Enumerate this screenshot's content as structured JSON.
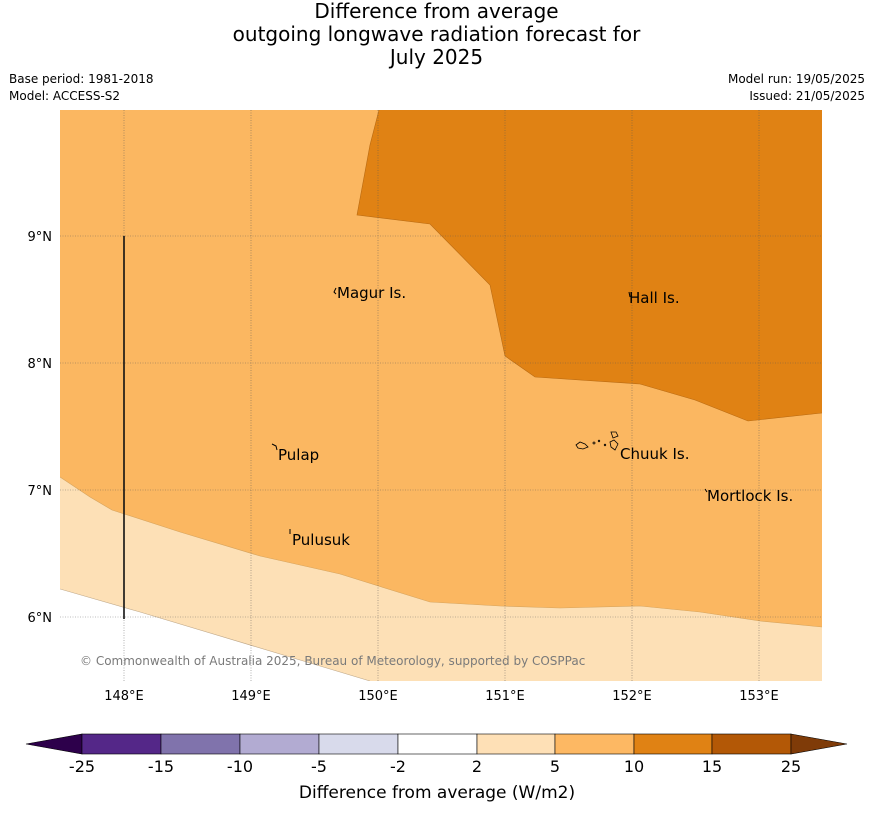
{
  "title": {
    "line1": "Difference from average",
    "line2": "outgoing longwave radiation forecast for",
    "line3": "July 2025"
  },
  "meta": {
    "base_period": "Base period: 1981-2018",
    "model": "Model: ACCESS-S2",
    "model_run": "Model run: 19/05/2025",
    "issued": "Issued: 21/05/2025"
  },
  "map": {
    "lon_ticks": [
      "148°E",
      "149°E",
      "150°E",
      "151°E",
      "152°E",
      "153°E"
    ],
    "lat_ticks": [
      "9°N",
      "8°N",
      "7°N",
      "6°N"
    ],
    "places": [
      {
        "name": "Magur Is."
      },
      {
        "name": "Hall Is."
      },
      {
        "name": "Pulap"
      },
      {
        "name": "Chuuk Is."
      },
      {
        "name": "Mortlock Is."
      },
      {
        "name": "Pulusuk"
      }
    ],
    "copyright": "© Commonwealth of Australia 2025, Bureau of Meteorology, supported by COSPPac",
    "fill_colors": {
      "low": "#fde0b6",
      "mid": "#fbb761",
      "high": "#e08214"
    }
  },
  "colorbar": {
    "label": "Difference from average (W/m2)",
    "ticks": [
      "-25",
      "-15",
      "-10",
      "-5",
      "-2",
      "2",
      "5",
      "10",
      "15",
      "25"
    ],
    "colors": [
      "#2d004b",
      "#542788",
      "#8073ac",
      "#b2abd2",
      "#d8daeb",
      "#ffffff",
      "#fee0b6",
      "#fdb863",
      "#e08214",
      "#b35806",
      "#7f3b08"
    ]
  }
}
